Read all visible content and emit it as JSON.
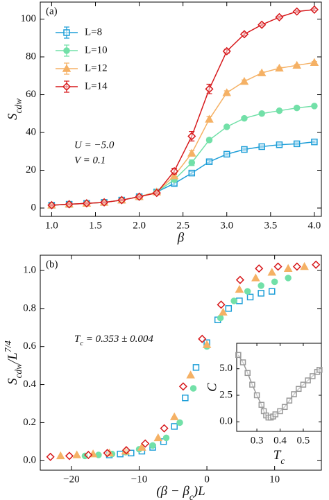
{
  "chart_data": [
    {
      "type": "line",
      "panel_label": "(a)",
      "xlabel": "β",
      "ylabel": {
        "text": "S",
        "sub": "cdw"
      },
      "annotations": [
        "U = −5.0",
        "V = 0.1"
      ],
      "xlim": [
        0.87,
        4.08
      ],
      "ylim": [
        -4.4,
        109
      ],
      "xticks": [
        {
          "value": 1.0,
          "label": "1.0"
        },
        {
          "value": 1.5,
          "label": "1.5"
        },
        {
          "value": 2.0,
          "label": "2.0"
        },
        {
          "value": 2.5,
          "label": "2.5"
        },
        {
          "value": 3.0,
          "label": "3.0"
        },
        {
          "value": 3.5,
          "label": "3.5"
        },
        {
          "value": 4.0,
          "label": "4.0"
        }
      ],
      "yticks": [
        0,
        20,
        40,
        60,
        80,
        100
      ],
      "legend": "upper left",
      "x": [
        1.0,
        1.2,
        1.4,
        1.6,
        1.8,
        2.0,
        2.2,
        2.4,
        2.6,
        2.8,
        3.0,
        3.2,
        3.4,
        3.6,
        3.8,
        4.0
      ],
      "series": [
        {
          "name": "L=8",
          "color": "#1f9fd8",
          "marker": "square",
          "values": [
            1.5,
            2,
            2.5,
            3,
            4.2,
            6,
            8.5,
            13,
            18.5,
            24.5,
            28.5,
            31,
            32.5,
            33.5,
            34,
            35
          ],
          "errors": [
            0.3,
            0.3,
            0.3,
            0.3,
            0.3,
            0.3,
            0.5,
            1,
            0.8,
            0.8,
            0.5,
            0.5,
            0.5,
            0.5,
            0.5,
            0.5
          ]
        },
        {
          "name": "L=10",
          "color": "#72e0a8",
          "marker": "circle",
          "values": [
            1.5,
            2,
            2.5,
            3,
            4.2,
            6,
            8.5,
            15,
            24,
            36,
            43,
            47.5,
            50,
            51.5,
            53,
            54
          ],
          "errors": [
            0.3,
            0.3,
            0.3,
            0.3,
            0.3,
            0.3,
            0.5,
            1,
            1.5,
            1,
            0.8,
            0.5,
            0.5,
            0.5,
            0.5,
            0.5
          ]
        },
        {
          "name": "L=12",
          "color": "#f5b165",
          "marker": "triangle",
          "values": [
            1.5,
            2,
            2.5,
            3,
            4.2,
            6,
            8.5,
            17,
            29,
            47,
            61,
            67,
            71.5,
            74,
            75.5,
            77
          ],
          "errors": [
            0.3,
            0.3,
            0.3,
            0.3,
            0.3,
            0.3,
            0.5,
            1,
            1.5,
            1.5,
            1,
            0.8,
            0.5,
            0.5,
            0.5,
            0.5
          ]
        },
        {
          "name": "L=14",
          "color": "#d7191c",
          "marker": "diamond",
          "values": [
            1.5,
            2,
            2.5,
            3,
            4.2,
            6,
            8,
            19.5,
            38,
            63,
            83,
            92,
            97,
            101,
            104,
            105
          ],
          "errors": [
            0.3,
            0.3,
            0.3,
            0.3,
            0.3,
            0.3,
            0.5,
            1.5,
            2.5,
            2.5,
            1,
            0.8,
            0.5,
            0.5,
            0.5,
            0.5
          ]
        }
      ]
    },
    {
      "type": "scatter",
      "panel_label": "(b)",
      "xlabel": {
        "text": "(β − β",
        "sub": "c",
        "rest": ")L"
      },
      "ylabel": {
        "text": "S",
        "sub": "cdw",
        "rest": "/L",
        "sup": "7/4"
      },
      "annotations": [
        {
          "text": "T",
          "sub": "c",
          "rest": " = 0.353 ± 0.004"
        }
      ],
      "xlim": [
        -24.6,
        16.9
      ],
      "ylim": [
        -0.05,
        1.08
      ],
      "xticks": [
        {
          "value": -20,
          "label": "−20"
        },
        {
          "value": -10,
          "label": "−10"
        },
        0,
        10
      ],
      "yticks": [
        {
          "value": 0,
          "label": "0.0"
        },
        {
          "value": 0.2,
          "label": "0.2"
        },
        {
          "value": 0.4,
          "label": "0.4"
        },
        {
          "value": 0.6,
          "label": "0.6"
        },
        {
          "value": 0.8,
          "label": "0.8"
        },
        {
          "value": 1.0,
          "label": "1.0"
        }
      ],
      "series": [
        {
          "color": "#1f9fd8",
          "marker": "square",
          "x": [
            -14.4,
            -12.8,
            -11.2,
            -9.6,
            -8,
            -6.4,
            -4.8,
            -3.2,
            -1.6,
            0,
            1.6,
            3.2,
            4.8,
            6.4,
            8,
            9.6
          ],
          "values": [
            0.03,
            0.035,
            0.04,
            0.05,
            0.07,
            0.1,
            0.18,
            0.33,
            0.49,
            0.62,
            0.74,
            0.8,
            0.84,
            0.86,
            0.88,
            0.89
          ]
        },
        {
          "color": "#72e0a8",
          "marker": "circle",
          "x": [
            -18,
            -16,
            -14,
            -12,
            -10,
            -8,
            -6,
            -4,
            -2,
            0,
            2,
            4,
            6,
            8,
            10,
            12
          ],
          "values": [
            0.025,
            0.03,
            0.035,
            0.045,
            0.06,
            0.08,
            0.12,
            0.2,
            0.38,
            0.6,
            0.75,
            0.84,
            0.89,
            0.92,
            0.94,
            0.96
          ]
        },
        {
          "color": "#f5b165",
          "marker": "triangle",
          "x": [
            -21.6,
            -19.2,
            -16.8,
            -14.4,
            -12,
            -9.6,
            -7.2,
            -4.8,
            -2.4,
            0,
            2.4,
            4.8,
            7.2,
            9.6,
            12,
            14.4
          ],
          "values": [
            0.025,
            0.03,
            0.035,
            0.04,
            0.05,
            0.07,
            0.12,
            0.23,
            0.45,
            0.61,
            0.78,
            0.9,
            0.96,
            0.99,
            1.01,
            1.02
          ]
        },
        {
          "color": "#d7191c",
          "marker": "diamond",
          "x": [
            -23.1,
            -20.3,
            -17.5,
            -14.7,
            -11.9,
            -9.1,
            -6.3,
            -3.5,
            -0.7,
            2.1,
            4.9,
            7.7,
            10.5,
            13.3,
            16.1
          ],
          "values": [
            0.02,
            0.025,
            0.03,
            0.04,
            0.055,
            0.09,
            0.17,
            0.39,
            0.64,
            0.82,
            0.95,
            1.01,
            1.02,
            1.02,
            1.03
          ]
        }
      ]
    },
    {
      "type": "line",
      "inset": true,
      "xlabel": {
        "text": "T",
        "sub": "c"
      },
      "ylabel": "C",
      "xlim": [
        0.213,
        0.578
      ],
      "ylim": [
        -0.9,
        7.4
      ],
      "xticks": [
        {
          "value": 0.3,
          "label": "0.3"
        },
        {
          "value": 0.4,
          "label": "0.4"
        },
        {
          "value": 0.5,
          "label": "0.5"
        }
      ],
      "yticks": [
        {
          "value": 0,
          "label": "0.0"
        },
        {
          "value": 2.5,
          "label": "2.5"
        },
        {
          "value": 5,
          "label": "5.0"
        }
      ],
      "x": [
        0.22,
        0.24,
        0.26,
        0.28,
        0.3,
        0.32,
        0.33,
        0.34,
        0.35,
        0.36,
        0.37,
        0.38,
        0.4,
        0.42,
        0.44,
        0.46,
        0.48,
        0.5,
        0.52,
        0.54,
        0.56,
        0.57
      ],
      "series": [
        {
          "color": "#999999",
          "marker": "square",
          "values": [
            6.3,
            5.6,
            4.6,
            3.5,
            2.5,
            1.6,
            1.0,
            0.6,
            0.4,
            0.4,
            0.5,
            0.7,
            1.0,
            1.4,
            2.0,
            2.6,
            3.1,
            3.5,
            3.9,
            4.3,
            4.7,
            4.9
          ]
        }
      ]
    }
  ]
}
